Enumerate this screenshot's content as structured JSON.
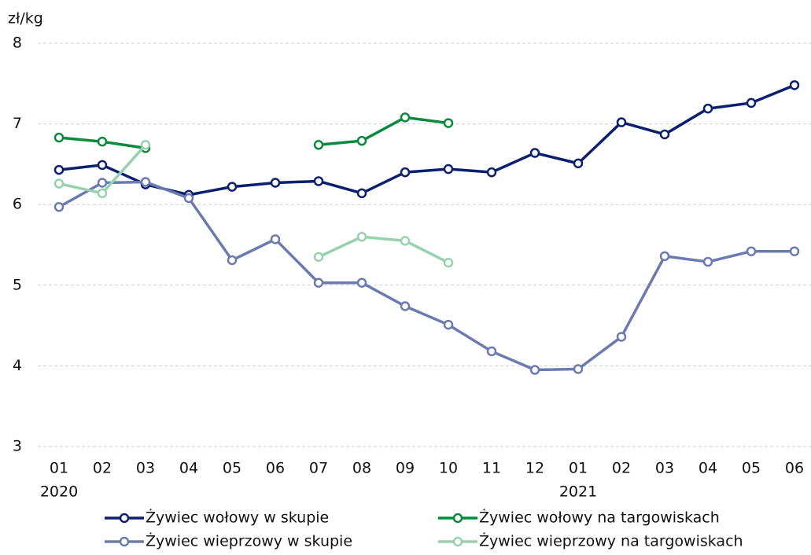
{
  "chart_data": {
    "type": "line",
    "y_label": "zł/kg",
    "categories": [
      "01",
      "02",
      "03",
      "04",
      "05",
      "06",
      "07",
      "08",
      "09",
      "10",
      "11",
      "12",
      "01",
      "02",
      "03",
      "04",
      "05",
      "06"
    ],
    "year_labels": [
      "2020",
      null,
      null,
      null,
      null,
      null,
      null,
      null,
      null,
      null,
      null,
      null,
      "2021",
      null,
      null,
      null,
      null,
      null
    ],
    "series": [
      {
        "name": "Żywiec wołowy w skupie",
        "color": "#0b1f6e",
        "values": [
          6.43,
          6.49,
          6.25,
          6.12,
          6.22,
          6.27,
          6.29,
          6.14,
          6.4,
          6.44,
          6.4,
          6.64,
          6.51,
          7.02,
          6.87,
          7.19,
          7.26,
          7.48
        ]
      },
      {
        "name": "Żywiec wołowy na targowiskach",
        "color": "#0a8a3e",
        "values": [
          6.83,
          6.78,
          6.7,
          null,
          null,
          null,
          6.74,
          6.79,
          7.08,
          7.01,
          null,
          null,
          null,
          null,
          null,
          null,
          null,
          null
        ]
      },
      {
        "name": "Żywiec wieprzowy w skupie",
        "color": "#6b7aaf",
        "values": [
          5.97,
          6.27,
          6.28,
          6.08,
          5.31,
          5.57,
          5.03,
          5.03,
          4.74,
          4.51,
          4.18,
          3.95,
          3.96,
          4.36,
          5.36,
          5.29,
          5.42,
          5.42
        ]
      },
      {
        "name": "Żywiec wieprzowy na targowiskach",
        "color": "#98d1ae",
        "values": [
          6.26,
          6.14,
          6.74,
          null,
          null,
          null,
          5.35,
          5.6,
          5.55,
          5.28,
          null,
          null,
          null,
          null,
          null,
          null,
          null,
          null
        ]
      }
    ],
    "ylim": [
      3,
      8
    ],
    "yticks": [
      3,
      4,
      5,
      6,
      7,
      8
    ],
    "grid": true,
    "legend": "bottom"
  }
}
